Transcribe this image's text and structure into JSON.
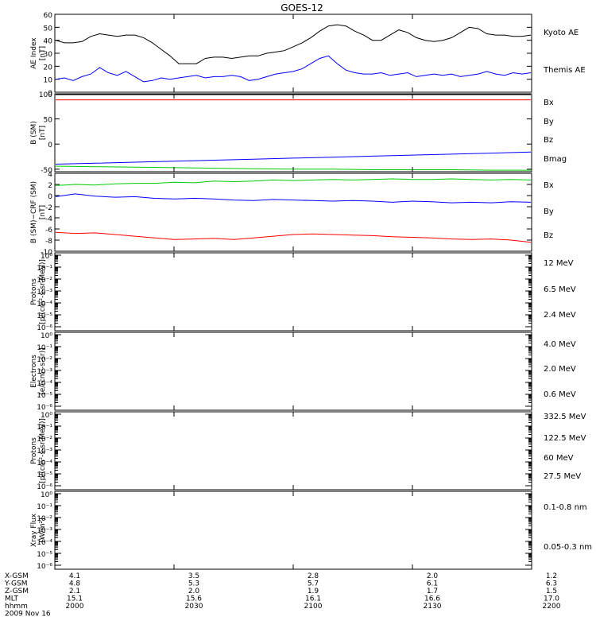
{
  "title": "GOES-12",
  "chart_data": [
    {
      "type": "line",
      "ylabel": [
        "AE Index",
        "[nT]"
      ],
      "ylim": [
        0,
        60
      ],
      "yticks": [
        "0",
        "10",
        "20",
        "30",
        "40",
        "50",
        "60"
      ],
      "log": false,
      "series": [
        {
          "name": "Kyoto AE",
          "color": "#000000",
          "values": [
            40,
            38,
            38,
            39,
            43,
            45,
            44,
            43,
            44,
            44,
            42,
            38,
            33,
            28,
            22,
            22,
            22,
            26,
            27,
            27,
            26,
            27,
            28,
            28,
            30,
            31,
            32,
            35,
            38,
            42,
            47,
            51,
            52,
            51,
            47,
            44,
            40,
            40,
            44,
            48,
            46,
            42,
            40,
            39,
            40,
            42,
            46,
            50,
            49,
            45,
            44,
            44,
            43,
            43,
            44
          ]
        },
        {
          "name": "Themis AE",
          "color": "#0000ff",
          "values": [
            10,
            11,
            9,
            12,
            14,
            19,
            15,
            13,
            16,
            12,
            8,
            9,
            11,
            10,
            11,
            12,
            13,
            11,
            12,
            12,
            13,
            12,
            9,
            10,
            12,
            14,
            15,
            16,
            18,
            22,
            26,
            28,
            22,
            17,
            15,
            14,
            14,
            15,
            13,
            14,
            15,
            12,
            13,
            14,
            13,
            14,
            12,
            13,
            14,
            16,
            14,
            13,
            15,
            14,
            15
          ]
        }
      ]
    },
    {
      "type": "line",
      "ylabel": [
        "B (SM)",
        "[nT]"
      ],
      "ylim": [
        -55,
        100
      ],
      "yticks": [
        "-50",
        "0",
        "50",
        "100"
      ],
      "log": false,
      "series": [
        {
          "name": "Bx",
          "color": "#0000ff",
          "values": [
            -40,
            -38,
            -36,
            -34,
            -32,
            -30,
            -28,
            -26,
            -24,
            -22,
            -20,
            -18,
            -16
          ]
        },
        {
          "name": "By",
          "color": "#00cc00",
          "values": [
            -44,
            -45,
            -46,
            -47,
            -48,
            -49,
            -50,
            -50,
            -51,
            -51,
            -51,
            -52,
            -52
          ]
        },
        {
          "name": "Bz",
          "color": "#ff0000",
          "values": [
            88,
            88,
            88,
            88,
            88,
            88,
            88,
            88,
            88,
            88,
            88,
            88,
            88
          ]
        },
        {
          "name": "Bmag",
          "color": "#000000",
          "values": [
            99,
            99,
            99,
            99,
            99,
            99,
            99,
            99,
            99,
            99,
            99,
            99,
            99
          ]
        }
      ]
    },
    {
      "type": "line",
      "ylabel": [
        "B (SM)−CRF (SM)",
        "[nT]"
      ],
      "ylim": [
        -10,
        4
      ],
      "yticks": [
        "-10",
        "-8",
        "-6",
        "-4",
        "-2",
        "0",
        "2",
        "4"
      ],
      "log": false,
      "series": [
        {
          "name": "Bx",
          "color": "#0000ff",
          "values": [
            -0.2,
            0.3,
            -0.1,
            -0.3,
            -0.2,
            -0.5,
            -0.6,
            -0.5,
            -0.6,
            -0.8,
            -0.9,
            -0.7,
            -0.8,
            -0.9,
            -1.0,
            -0.9,
            -1.0,
            -1.2,
            -1.0,
            -1.1,
            -1.3,
            -1.2,
            -1.3,
            -1.1,
            -1.2
          ]
        },
        {
          "name": "By",
          "color": "#00cc00",
          "values": [
            1.8,
            2.0,
            1.9,
            2.1,
            2.2,
            2.2,
            2.4,
            2.3,
            2.6,
            2.5,
            2.6,
            2.8,
            2.7,
            2.8,
            2.9,
            2.8,
            2.9,
            3.0,
            2.9,
            2.9,
            3.0,
            2.9,
            2.8,
            2.9,
            2.8
          ]
        },
        {
          "name": "Bz",
          "color": "#ff0000",
          "values": [
            -6.6,
            -6.8,
            -6.7,
            -7.0,
            -7.3,
            -7.6,
            -7.9,
            -7.8,
            -7.7,
            -7.9,
            -7.6,
            -7.3,
            -7.0,
            -6.9,
            -7.0,
            -7.1,
            -7.2,
            -7.4,
            -7.5,
            -7.6,
            -7.8,
            -7.9,
            -7.8,
            -8.0,
            -8.4
          ]
        }
      ]
    },
    {
      "type": "line",
      "ylabel": [
        "Protons",
        "[p/(cm²-s-sr-MeV)]"
      ],
      "log": true,
      "yticks": [
        "10⁰",
        "10⁻¹",
        "10⁻²",
        "10⁻³",
        "10⁻⁴",
        "10⁻⁵",
        "10⁻⁶"
      ],
      "series": [
        {
          "name": "12 MeV",
          "color": "#cc0000",
          "values": []
        },
        {
          "name": "6.5 MeV",
          "color": "#00cc55",
          "values": []
        },
        {
          "name": "2.4 MeV",
          "color": "#000000",
          "values": []
        }
      ]
    },
    {
      "type": "line",
      "ylabel": [
        "Electrons",
        "[e/(cm²-s-sr)]"
      ],
      "log": true,
      "yticks": [
        "10⁰",
        "10⁻¹",
        "10⁻²",
        "10⁻³",
        "10⁻⁴",
        "10⁻⁵",
        "10⁻⁶"
      ],
      "series": [
        {
          "name": "4.0 MeV",
          "color": "#cc0000",
          "values": []
        },
        {
          "name": "2.0 MeV",
          "color": "#00cc55",
          "values": []
        },
        {
          "name": "0.6 MeV",
          "color": "#000000",
          "values": []
        }
      ]
    },
    {
      "type": "line",
      "ylabel": [
        "Protons",
        "[p/(cm²-s-sr-MeV)]"
      ],
      "log": true,
      "yticks": [
        "10⁰",
        "10⁻¹",
        "10⁻²",
        "10⁻³",
        "10⁻⁴",
        "10⁻⁵",
        "10⁻⁶"
      ],
      "series": [
        {
          "name": "332.5 MeV",
          "color": "#cc0000",
          "values": []
        },
        {
          "name": "122.5 MeV",
          "color": "#ffdd00",
          "values": []
        },
        {
          "name": "60 MeV",
          "color": "#00aadd",
          "values": []
        },
        {
          "name": "27.5 MeV",
          "color": "#000000",
          "values": []
        }
      ]
    },
    {
      "type": "line",
      "ylabel": [
        "Xray Flux",
        "[W/m²]"
      ],
      "log": true,
      "yticks": [
        "10⁰",
        "10⁻¹",
        "10⁻²",
        "10⁻³",
        "10⁻⁴",
        "10⁻⁵",
        "10⁻⁶"
      ],
      "series": [
        {
          "name": "0.1-0.8 nm",
          "color": "#cc0000",
          "values": []
        },
        {
          "name": "0.05-0.3 nm",
          "color": "#0000cc",
          "values": []
        }
      ]
    }
  ],
  "xaxis": {
    "rows": [
      {
        "label": "X-GSM",
        "values": [
          "4.1",
          "3.5",
          "2.8",
          "2.0",
          "1.2"
        ]
      },
      {
        "label": "Y-GSM",
        "values": [
          "4.8",
          "5.3",
          "5.7",
          "6.1",
          "6.3"
        ]
      },
      {
        "label": "Z-GSM",
        "values": [
          "2.1",
          "2.0",
          "1.9",
          "1.7",
          "1.5"
        ]
      },
      {
        "label": "MLT",
        "values": [
          "15.1",
          "15.6",
          "16.1",
          "16.6",
          "17.0"
        ]
      },
      {
        "label": "hhmm",
        "values": [
          "2000",
          "2030",
          "2100",
          "2130",
          "2200"
        ]
      }
    ],
    "date": "2009 Nov 16"
  }
}
